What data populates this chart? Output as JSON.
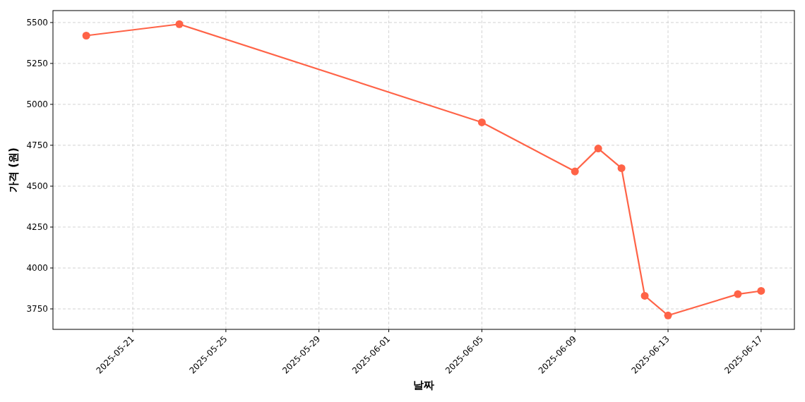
{
  "chart_data": {
    "type": "line",
    "xlabel": "날짜",
    "ylabel": "가격 (원)",
    "x": [
      "2025-05-19",
      "2025-05-23",
      "2025-06-05",
      "2025-06-09",
      "2025-06-10",
      "2025-06-11",
      "2025-06-12",
      "2025-06-13",
      "2025-06-16",
      "2025-06-17"
    ],
    "series": [
      {
        "color": "#ff6347",
        "values": [
          5420,
          5490,
          4890,
          4590,
          4730,
          4610,
          3830,
          3710,
          3840,
          3860
        ]
      }
    ],
    "xlim": [
      "2025-05-17T13:40",
      "2025-06-18T10:20"
    ],
    "xticks": [
      "2025-05-21",
      "2025-05-25",
      "2025-05-29",
      "2025-06-01",
      "2025-06-05",
      "2025-06-09",
      "2025-06-13",
      "2025-06-17"
    ],
    "ylim": [
      3625,
      5573
    ],
    "yticks": [
      3750,
      4000,
      4250,
      4500,
      4750,
      5000,
      5250,
      5500
    ],
    "grid": true,
    "marker": "circle",
    "line_style": "solid"
  }
}
